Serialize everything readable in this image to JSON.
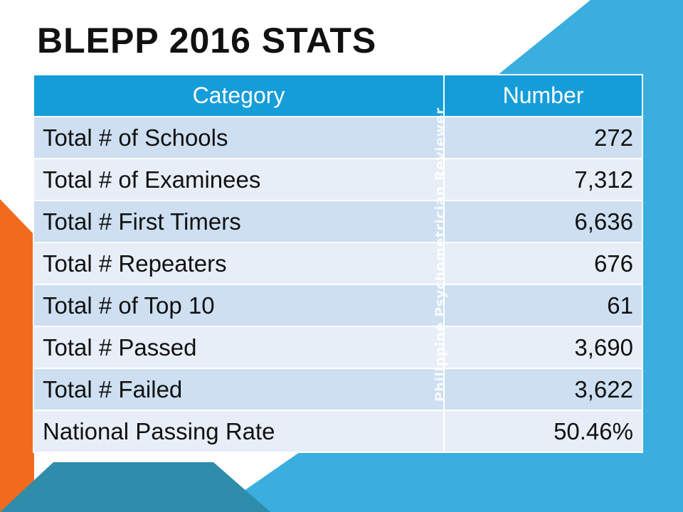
{
  "header": {
    "title": "BLEPP 2016 STATS"
  },
  "table": {
    "columns": [
      "Category",
      "Number"
    ],
    "rows": [
      [
        "Total # of Schools",
        "272"
      ],
      [
        "Total # of Examinees",
        "7,312"
      ],
      [
        "Total # First Timers",
        "6,636"
      ],
      [
        "Total # Repeaters",
        "676"
      ],
      [
        "Total # of Top 10",
        "61"
      ],
      [
        "Total # Passed",
        "3,690"
      ],
      [
        "Total # Failed",
        "3,622"
      ],
      [
        "National Passing Rate",
        "50.46%"
      ]
    ]
  },
  "watermark": "Philippine Psychometrician Reviewer"
}
